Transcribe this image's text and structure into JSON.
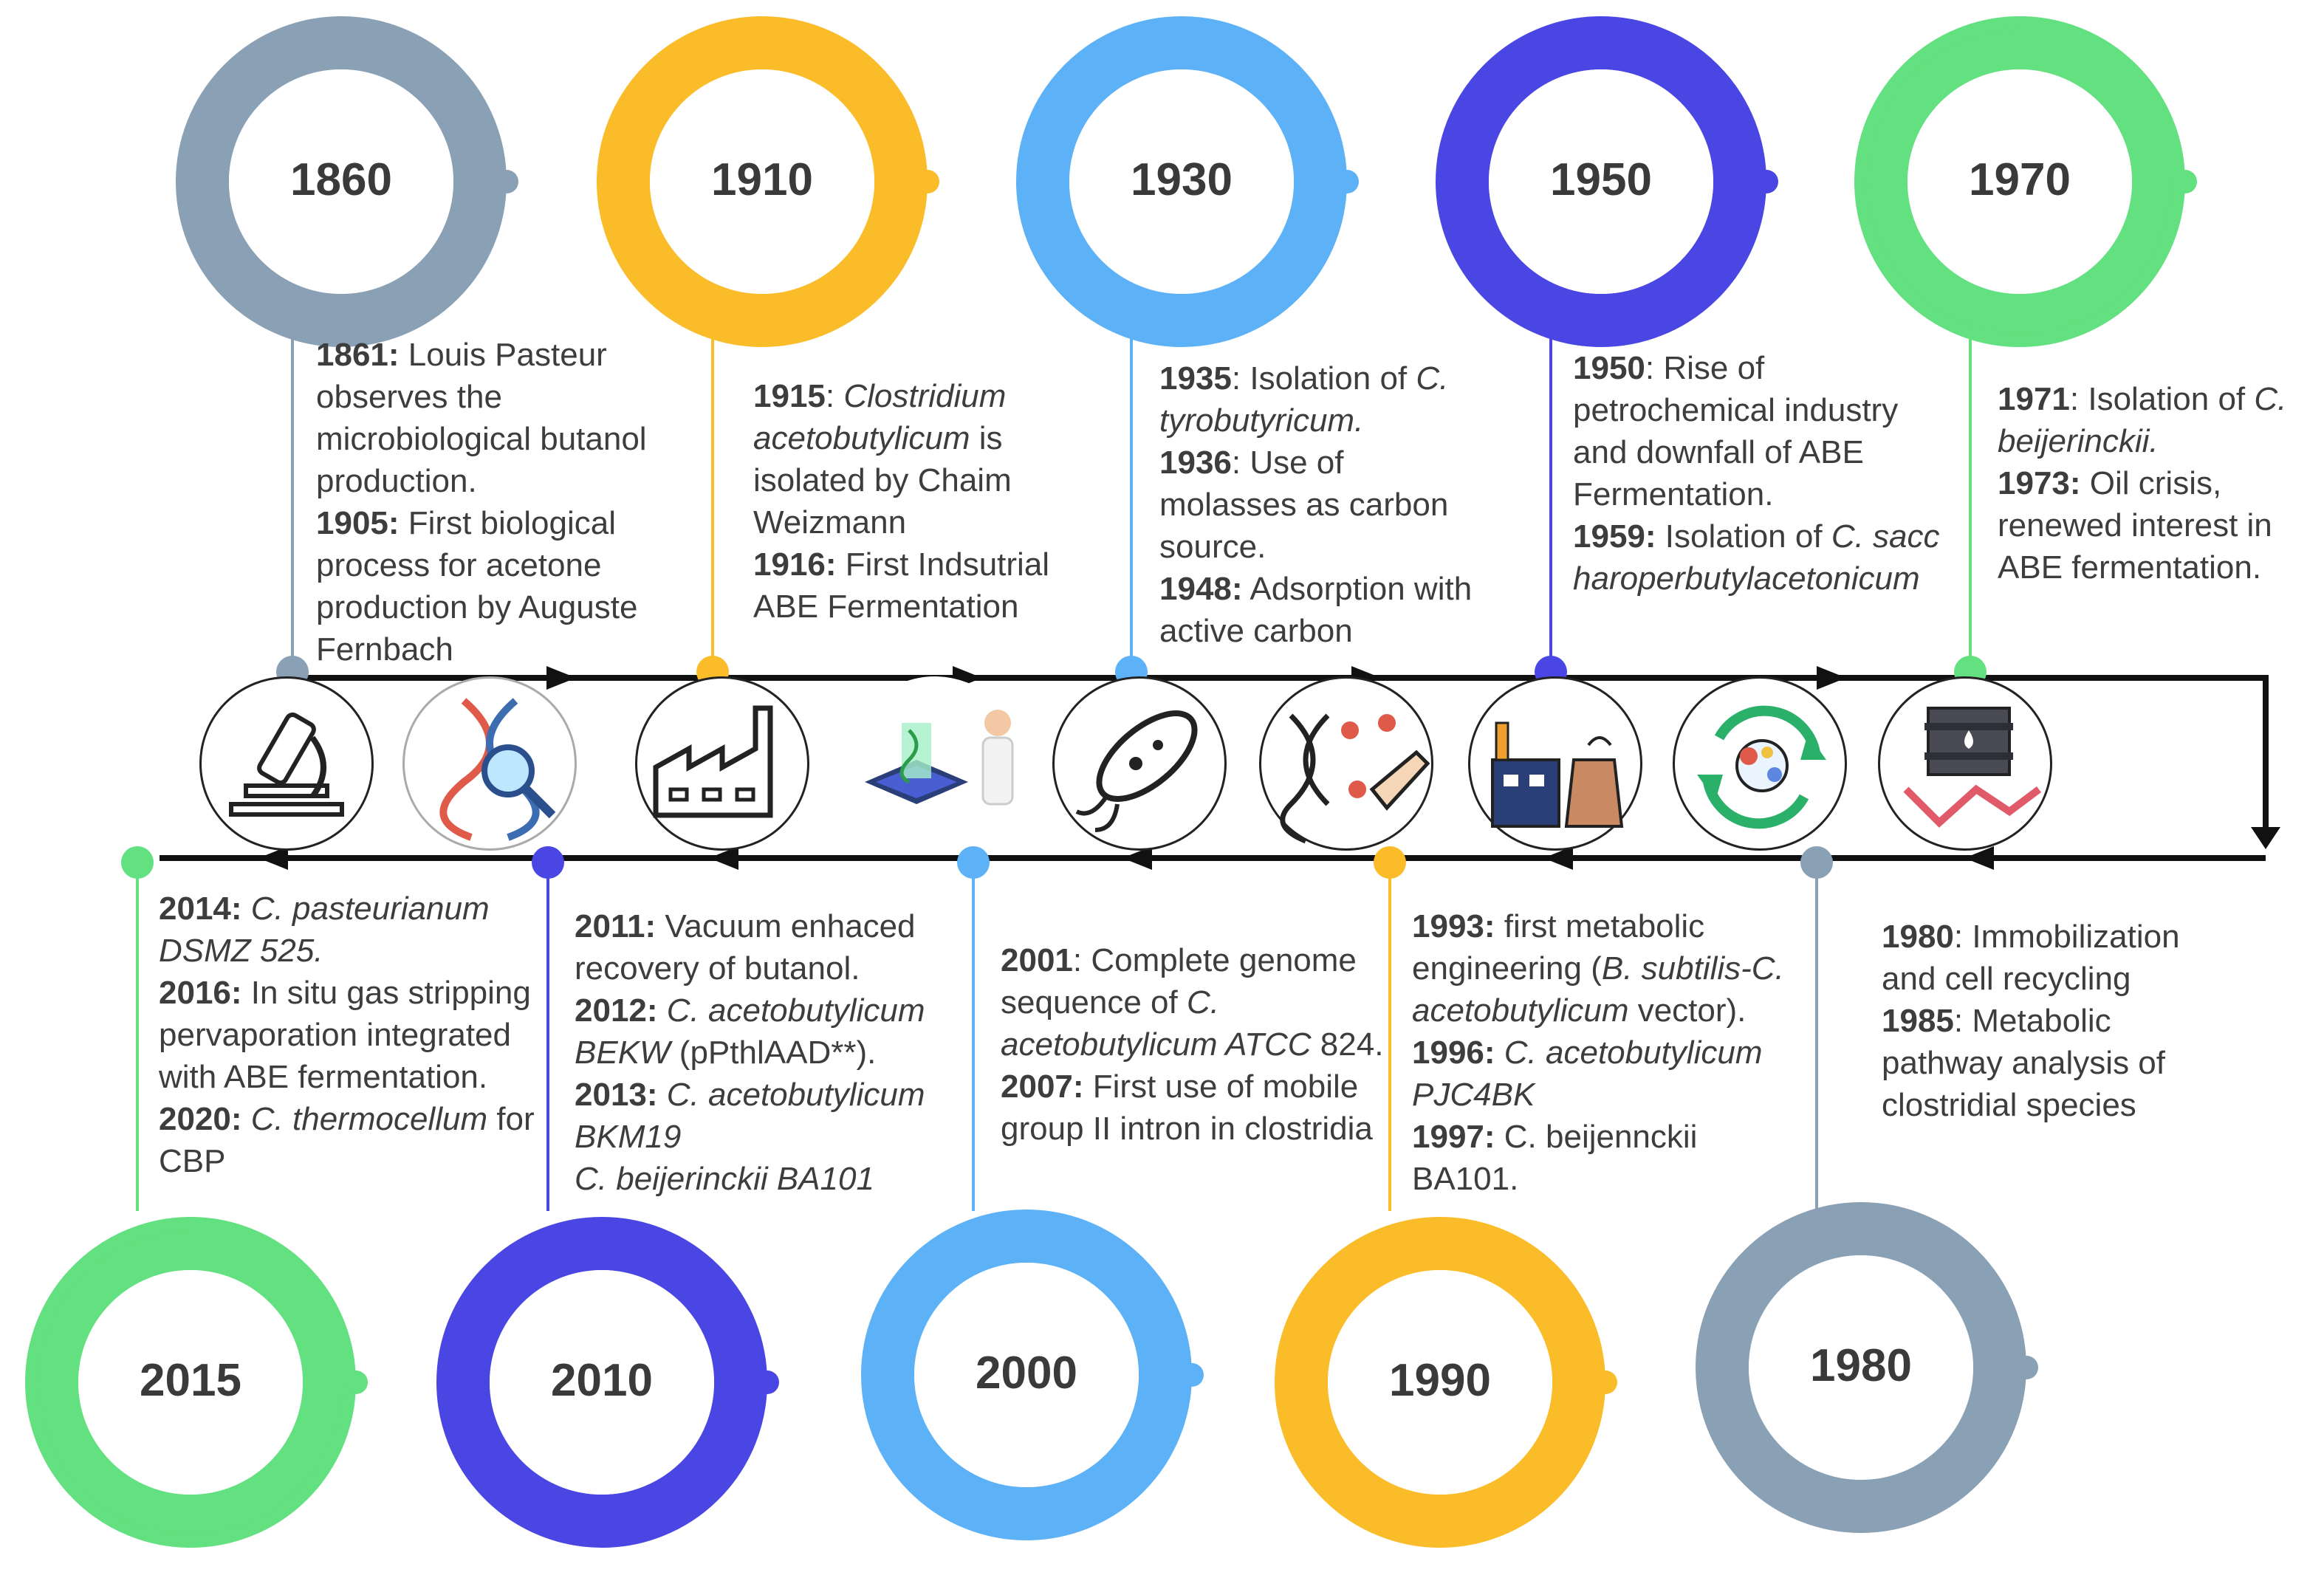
{
  "colors": {
    "gray": "#8aa0b4",
    "yellow": "#fbbc2a",
    "lightblue": "#5cb1f7",
    "indigo": "#4a46e4",
    "green": "#63e07f",
    "timeline": "#111111"
  },
  "nodes": [
    {
      "year": "1860",
      "color": "#8aa0b4"
    },
    {
      "year": "1910",
      "color": "#fbbc2a"
    },
    {
      "year": "1930",
      "color": "#5cb1f7"
    },
    {
      "year": "1950",
      "color": "#4a46e4"
    },
    {
      "year": "1970",
      "color": "#63e07f"
    },
    {
      "year": "2015",
      "color": "#63e07f"
    },
    {
      "year": "2010",
      "color": "#4a46e4"
    },
    {
      "year": "2000",
      "color": "#5cb1f7"
    },
    {
      "year": "1990",
      "color": "#fbbc2a"
    },
    {
      "year": "1980",
      "color": "#8aa0b4"
    }
  ],
  "events": {
    "e1861": {
      "y": "1861:",
      "t": " Louis Pasteur observes the microbiological butanol production."
    },
    "e1905": {
      "y": "1905:",
      "t": " First biological process for acetone production by Auguste Fernbach"
    },
    "e1915": {
      "y": "1915",
      "sep": ": ",
      "i": "Clostridium acetobutylicum",
      "t": " is isolated by Chaim Weizmann"
    },
    "e1916": {
      "y": "1916:",
      "t": " First Indsutrial ABE Fermentation"
    },
    "e1935": {
      "y": "1935",
      "t": ": Isolation of ",
      "i": "C. tyrobutyricum."
    },
    "e1936": {
      "y": "1936",
      "t": ": Use of molasses as carbon source."
    },
    "e1948": {
      "y": "1948:",
      "t": " Adsorption with active carbon"
    },
    "e1950": {
      "y": "1950",
      "t": ": Rise of petrochemical industry and downfall of ABE Fermentation."
    },
    "e1959": {
      "y": "1959:",
      "t": " Isolation of ",
      "i": "C. saccharoperbutylacetonicum"
    },
    "e1971": {
      "y": "1971",
      "t": ": Isolation of ",
      "i": "C. beijerinckii."
    },
    "e1973": {
      "y": "1973:",
      "t": " Oil crisis, renewed interest in ABE fermentation."
    },
    "e1980": {
      "y": "1980",
      "t": ": Immobilization and cell recycling"
    },
    "e1985": {
      "y": "1985",
      "t": ": Metabolic pathway analysis of clostridial species"
    },
    "e1993": {
      "y": "1993:",
      "t": " first metabolic engineering (",
      "i": "B. subtilis-C. acetobutylicum",
      "t2": " vector)."
    },
    "e1996": {
      "y": "1996:",
      "i": "C. acetobutylicum PJC4BK"
    },
    "e1997": {
      "y": "1997:",
      "t": " C. beijennckii BA101."
    },
    "e2001": {
      "y": "2001",
      "t": ": Complete genome sequence of ",
      "i": "C. acetobutylicum ATCC",
      "t2": " 824."
    },
    "e2007": {
      "y": "2007:",
      "t": " First use of mobile group II intron in clostridia"
    },
    "e2011": {
      "y": "2011:",
      "t": " Vacuum enhaced recovery of butanol."
    },
    "e2012": {
      "y": "2012:",
      "i": "C. acetobutylicum BEKW",
      "t2": " (pPthlAAD**)."
    },
    "e2013": {
      "y": "2013:",
      "i": "C. acetobutylicum BKM19",
      "i2": "C. beijerinckii BA101"
    },
    "e2014": {
      "y": "2014:",
      "i": "C. pasteurianum DSMZ 525."
    },
    "e2016": {
      "y": "2016:",
      "t": " In situ gas stripping pervaporation integrated with ABE fermentation."
    },
    "e2020": {
      "y": "2020:",
      "i": "C. thermocellum",
      "t2": " for CBP"
    }
  },
  "icons": [
    "microscope-icon",
    "dna-search-icon",
    "factory-icon",
    "lab-scientist-icon",
    "bacteria-icon",
    "dna-pipette-icon",
    "refinery-icon",
    "molecule-cycle-icon",
    "oil-barrel-decline-icon"
  ]
}
